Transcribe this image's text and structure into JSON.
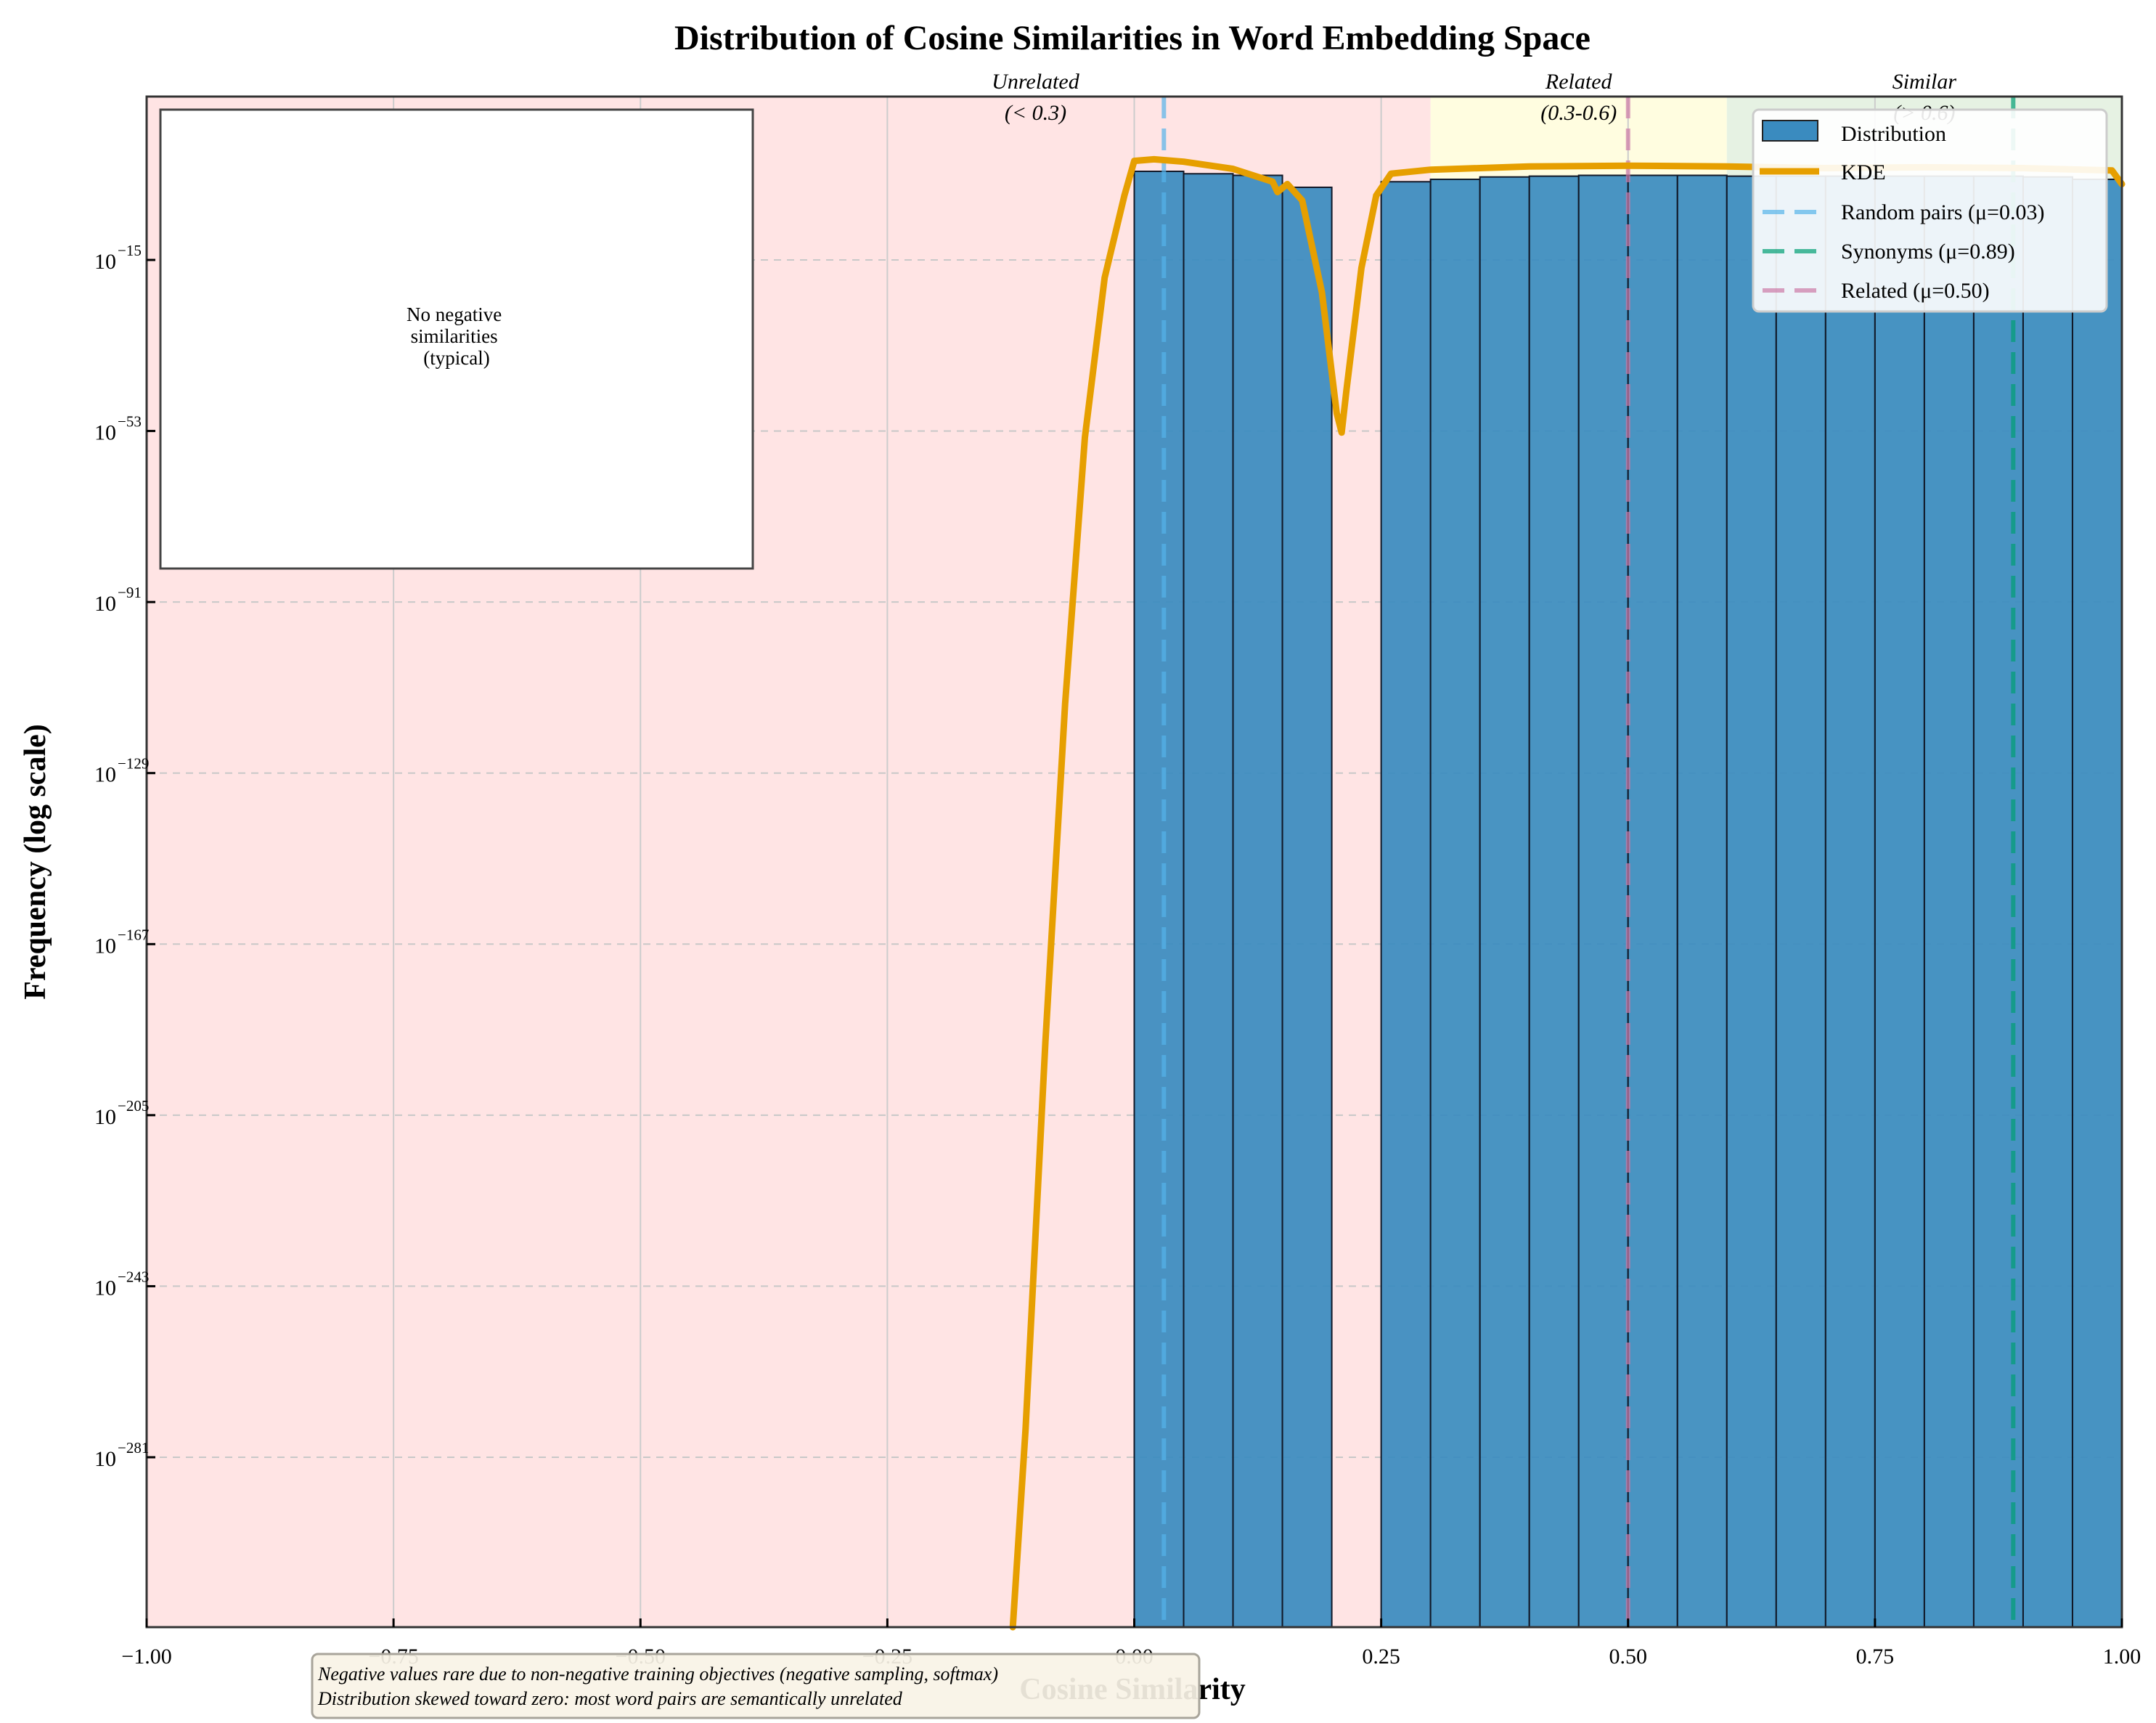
{
  "chart_data": {
    "type": "bar",
    "title": "Distribution of Cosine Similarities in Word Embedding Space",
    "xlabel": "Cosine Similarity",
    "ylabel": "Frequency (log scale)",
    "xlim": [
      -1.0,
      1.0
    ],
    "yscale": "log",
    "ylim_exponent": [
      -301,
      5
    ],
    "x_ticks": [
      "−1.00",
      "−0.75",
      "−0.50",
      "−0.25",
      "0.00",
      "0.25",
      "0.50",
      "0.75",
      "1.00"
    ],
    "x_tick_values": [
      -1.0,
      -0.75,
      -0.5,
      -0.25,
      0.0,
      0.25,
      0.5,
      0.75,
      1.0
    ],
    "y_ticks": [
      {
        "base": "10",
        "exp": "−15",
        "value": -15
      },
      {
        "base": "10",
        "exp": "−53",
        "value": -53
      },
      {
        "base": "10",
        "exp": "−91",
        "value": -91
      },
      {
        "base": "10",
        "exp": "−129",
        "value": -129
      },
      {
        "base": "10",
        "exp": "−167",
        "value": -167
      },
      {
        "base": "10",
        "exp": "−205",
        "value": -205
      },
      {
        "base": "10",
        "exp": "−243",
        "value": -243
      },
      {
        "base": "10",
        "exp": "−281",
        "value": -281
      }
    ],
    "grid": true,
    "histogram": {
      "name": "Distribution",
      "bin_width": 0.05,
      "bins": [
        {
          "x0": 0.0,
          "log10": 0.0
        },
        {
          "x0": 0.05,
          "log10": -0.3
        },
        {
          "x0": 0.1,
          "log10": -0.5
        },
        {
          "x0": 0.15,
          "log10": -2.0
        },
        {
          "x0": 0.25,
          "log10": -1.3
        },
        {
          "x0": 0.3,
          "log10": -1.0
        },
        {
          "x0": 0.35,
          "log10": -0.7
        },
        {
          "x0": 0.4,
          "log10": -0.6
        },
        {
          "x0": 0.45,
          "log10": -0.5
        },
        {
          "x0": 0.5,
          "log10": -0.5
        },
        {
          "x0": 0.55,
          "log10": -0.5
        },
        {
          "x0": 0.6,
          "log10": -0.6
        },
        {
          "x0": 0.65,
          "log10": -0.6
        },
        {
          "x0": 0.7,
          "log10": -0.6
        },
        {
          "x0": 0.75,
          "log10": -0.6
        },
        {
          "x0": 0.8,
          "log10": -0.6
        },
        {
          "x0": 0.85,
          "log10": -0.6
        },
        {
          "x0": 0.9,
          "log10": -0.7
        },
        {
          "x0": 0.95,
          "log10": -1.0
        }
      ]
    },
    "kde": {
      "name": "KDE",
      "points": [
        [
          -0.123,
          -301
        ],
        [
          -0.11,
          -260
        ],
        [
          -0.09,
          -180
        ],
        [
          -0.07,
          -110
        ],
        [
          -0.05,
          -55
        ],
        [
          -0.03,
          -22
        ],
        [
          -0.01,
          -5
        ],
        [
          0.0,
          0.4
        ],
        [
          0.02,
          0.6
        ],
        [
          0.05,
          0.3
        ],
        [
          0.1,
          -0.6
        ],
        [
          0.14,
          -2.2
        ],
        [
          0.145,
          -3.5
        ],
        [
          0.155,
          -2.5
        ],
        [
          0.17,
          -6
        ],
        [
          0.19,
          -25
        ],
        [
          0.205,
          -50
        ],
        [
          0.21,
          -54
        ],
        [
          0.215,
          -45
        ],
        [
          0.23,
          -20
        ],
        [
          0.245,
          -5
        ],
        [
          0.26,
          -1.2
        ],
        [
          0.3,
          -0.7
        ],
        [
          0.4,
          -0.3
        ],
        [
          0.5,
          -0.2
        ],
        [
          0.6,
          -0.3
        ],
        [
          0.7,
          -0.5
        ],
        [
          0.8,
          -0.4
        ],
        [
          0.9,
          -0.5
        ],
        [
          0.99,
          -0.8
        ],
        [
          1.0,
          -2.5
        ]
      ]
    },
    "reference_lines": [
      {
        "name": "Random pairs (μ=0.03)",
        "x": 0.03,
        "color": "#56b4e9"
      },
      {
        "name": "Synonyms (μ=0.89)",
        "x": 0.89,
        "color": "#009e73"
      },
      {
        "name": "Related (μ=0.50)",
        "x": 0.5,
        "color": "#cc79a7"
      }
    ],
    "regions": [
      {
        "name": "Unrelated",
        "range": "(< 0.3)",
        "x0": -1.0,
        "x1": 0.3,
        "color": "#ffe4e4",
        "label_x": -0.1
      },
      {
        "name": "Related",
        "range": "(0.3-0.6)",
        "x0": 0.3,
        "x1": 0.6,
        "color": "#fffde0",
        "label_x": 0.45
      },
      {
        "name": "Similar",
        "range": "(> 0.6)",
        "x0": 0.6,
        "x1": 1.0,
        "color": "#e6f2e3",
        "label_x": 0.8
      }
    ],
    "legend": {
      "position": "upper right",
      "entries": [
        "Distribution",
        "KDE",
        "Random pairs (μ=0.03)",
        "Synonyms (μ=0.89)",
        "Related (μ=0.50)"
      ]
    },
    "annotations": {
      "inset": [
        "No negative",
        "similarities",
        "(typical)"
      ],
      "note_lines": [
        "Negative values rare due to non-negative training objectives (negative sampling, softmax)",
        "Distribution skewed toward zero: most word pairs are semantically unrelated"
      ]
    }
  },
  "colors": {
    "bar_fill": "#3a8bbf",
    "bar_edge": "#111827",
    "kde": "#e69f00",
    "axes": "#333333",
    "grid": "#cccccc",
    "note_bg": "#f8f3e6",
    "note_border": "#a8a49a"
  }
}
